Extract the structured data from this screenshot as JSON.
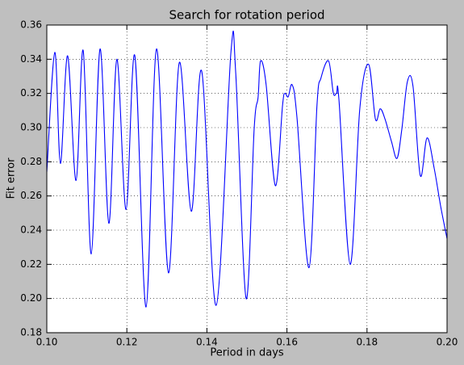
{
  "chart_data": {
    "type": "line",
    "title": "Search for rotation period",
    "x_label": "Period in days",
    "y_label": "Fit error",
    "x": [
      0.1,
      0.102,
      0.1034,
      0.1052,
      0.1073,
      0.1091,
      0.1111,
      0.1133,
      0.1155,
      0.1175,
      0.1198,
      0.122,
      0.1248,
      0.1274,
      0.1304,
      0.1331,
      0.1361,
      0.1387,
      0.1423,
      0.146,
      0.1472,
      0.1498,
      0.1518,
      0.1528,
      0.1534,
      0.1548,
      0.1571,
      0.1589,
      0.1595,
      0.1603,
      0.1613,
      0.1625,
      0.1655,
      0.1675,
      0.1685,
      0.1704,
      0.1716,
      0.1724,
      0.173,
      0.1758,
      0.1782,
      0.1804,
      0.1821,
      0.1833,
      0.1845,
      0.1861,
      0.1875,
      0.1887,
      0.1901,
      0.1915,
      0.1933,
      0.195,
      0.1968,
      0.1984,
      0.2
    ],
    "series": [
      {
        "color": "#0000ff",
        "values": [
          0.274,
          0.344,
          0.279,
          0.342,
          0.269,
          0.345,
          0.226,
          0.346,
          0.244,
          0.34,
          0.252,
          0.342,
          0.195,
          0.346,
          0.215,
          0.338,
          0.251,
          0.333,
          0.196,
          0.344,
          0.332,
          0.2,
          0.299,
          0.318,
          0.339,
          0.325,
          0.266,
          0.313,
          0.32,
          0.318,
          0.325,
          0.306,
          0.218,
          0.313,
          0.329,
          0.339,
          0.32,
          0.32,
          0.316,
          0.22,
          0.311,
          0.337,
          0.305,
          0.311,
          0.305,
          0.292,
          0.282,
          0.299,
          0.327,
          0.324,
          0.272,
          0.294,
          0.276,
          0.254,
          0.235
        ]
      }
    ],
    "xlim": [
      0.1,
      0.2
    ],
    "xticks": [
      {
        "value": 0.1,
        "label": "0.10"
      },
      {
        "value": 0.12,
        "label": "0.12"
      },
      {
        "value": 0.14,
        "label": "0.14"
      },
      {
        "value": 0.16,
        "label": "0.16"
      },
      {
        "value": 0.18,
        "label": "0.18"
      },
      {
        "value": 0.2,
        "label": "0.20"
      }
    ],
    "ylim": [
      0.18,
      0.36
    ],
    "yticks": [
      0.18,
      {
        "value": 0.2,
        "label": "0.20"
      },
      0.22,
      0.24,
      0.26,
      0.28,
      {
        "value": 0.3,
        "label": "0.30"
      },
      0.32,
      0.34,
      0.36
    ],
    "grid": true
  }
}
